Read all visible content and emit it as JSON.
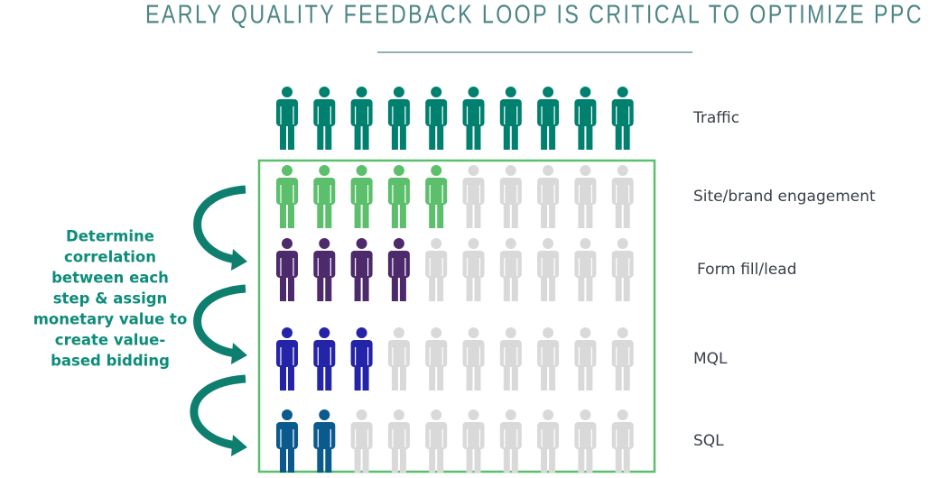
{
  "chart_data": {
    "type": "pictogram",
    "title": "EARLY QUALITY FEEDBACK LOOP IS CRITICAL TO OPTIMIZE PPC",
    "categories": [
      "Traffic",
      "Site/brand engagement",
      "Form fill/lead",
      "MQL",
      "SQL"
    ],
    "values": [
      10,
      5,
      4,
      3,
      2
    ],
    "icons_per_row": 10,
    "colors": [
      "#00806f",
      "#5cbf6c",
      "#4d2a6b",
      "#2424a8",
      "#0a5a8e"
    ],
    "empty_color": "#d9d9d9",
    "annotation": [
      "Determine",
      "correlation",
      "between each",
      "step & assign",
      "monetary value to",
      "create value-",
      "based bidding"
    ]
  }
}
